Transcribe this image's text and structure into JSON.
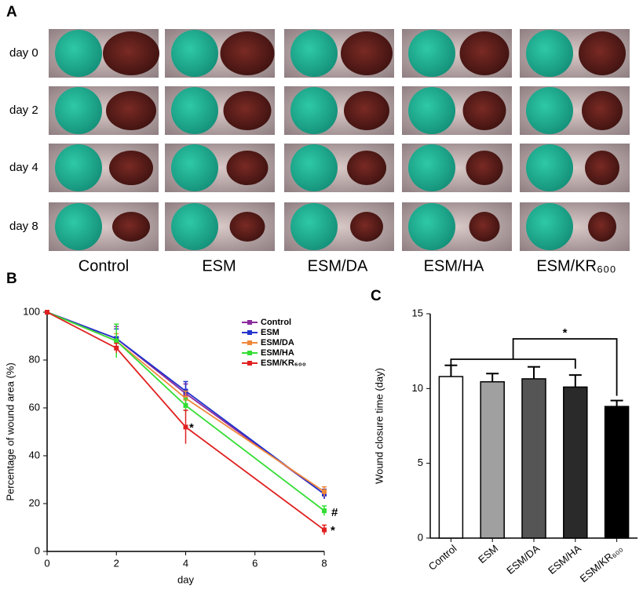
{
  "panel_a": {
    "label": "A",
    "rows": [
      "day 0",
      "day 2",
      "day 4",
      "day 8"
    ],
    "columns": [
      "Control",
      "ESM",
      "ESM/DA",
      "ESM/HA",
      "ESM/KR₆₀₀"
    ]
  },
  "chart_data": [
    {
      "type": "line",
      "panel_label": "B",
      "x": [
        0,
        2,
        4,
        8
      ],
      "series": [
        {
          "name": "Control",
          "color": "#8b2a9b",
          "values": [
            100,
            89,
            66,
            24
          ],
          "errors": [
            0,
            5,
            4,
            2
          ]
        },
        {
          "name": "ESM",
          "color": "#2233cc",
          "values": [
            100,
            89,
            67,
            24
          ],
          "errors": [
            0,
            4,
            4,
            2
          ]
        },
        {
          "name": "ESM/DA",
          "color": "#f0883a",
          "values": [
            100,
            88,
            64,
            25
          ],
          "errors": [
            0,
            3,
            3,
            2
          ]
        },
        {
          "name": "ESM/HA",
          "color": "#33dd33",
          "values": [
            100,
            88,
            61,
            17
          ],
          "errors": [
            0,
            7,
            3,
            2
          ]
        },
        {
          "name": "ESM/KR₆₀₀",
          "color": "#e02020",
          "values": [
            100,
            85,
            52,
            9
          ],
          "errors": [
            0,
            2,
            7,
            2
          ]
        }
      ],
      "xlabel": "day",
      "ylabel": "Percentage of wound area (%)",
      "xlim": [
        0,
        8
      ],
      "xticks": [
        0,
        2,
        4,
        6,
        8
      ],
      "ylim": [
        0,
        100
      ],
      "yticks": [
        0,
        20,
        40,
        60,
        80,
        100
      ],
      "legend": "upper right",
      "annotations": [
        "*",
        "#",
        "*"
      ]
    },
    {
      "type": "bar",
      "panel_label": "C",
      "categories": [
        "Control",
        "ESM",
        "ESM/DA",
        "ESM/HA",
        "ESM/KR₆₀₀"
      ],
      "values": [
        10.8,
        10.45,
        10.65,
        10.1,
        8.8
      ],
      "errors": [
        0.75,
        0.55,
        0.8,
        0.8,
        0.4
      ],
      "colors": [
        "#ffffff",
        "#a0a0a0",
        "#555555",
        "#2a2a2a",
        "#000000"
      ],
      "ylabel": "Wound closure time (day)",
      "ylim": [
        0,
        15
      ],
      "yticks": [
        0,
        5,
        10,
        15
      ],
      "annotations": [
        "*"
      ]
    }
  ]
}
